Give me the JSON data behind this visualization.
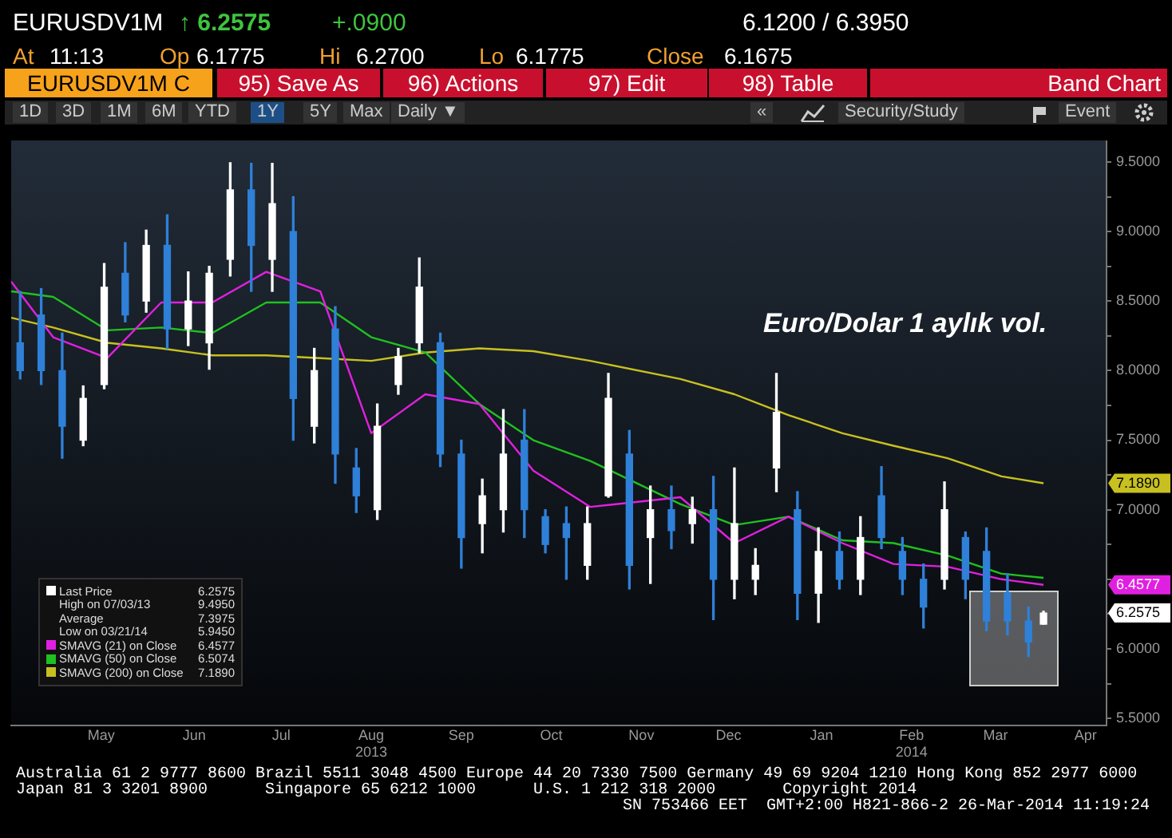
{
  "chart_data": {
    "type": "candlestick",
    "title": "Euro/Dolar 1 aylık vol.",
    "xlim": [
      "2013-04-16",
      "2014-04-16"
    ],
    "xticks": [
      {
        "value": "2013-05-16",
        "label": "May"
      },
      {
        "value": "2013-06-16",
        "label": "Jun"
      },
      {
        "value": "2013-07-15",
        "label": "Jul"
      },
      {
        "value": "2013-08-14",
        "label": "Aug\n2013"
      },
      {
        "value": "2013-09-13",
        "label": "Sep"
      },
      {
        "value": "2013-10-13",
        "label": "Oct"
      },
      {
        "value": "2013-11-12",
        "label": "Nov"
      },
      {
        "value": "2013-12-11",
        "label": "Dec"
      },
      {
        "value": "2014-01-11",
        "label": "Jan"
      },
      {
        "value": "2014-02-10",
        "label": "Feb\n2014"
      },
      {
        "value": "2014-03-10",
        "label": "Mar"
      },
      {
        "value": "2014-04-09",
        "label": "Apr"
      }
    ],
    "ylim": [
      5.45,
      9.65
    ],
    "yticks": [
      {
        "value": 5.5,
        "label": "5.5000"
      },
      {
        "value": 5.75,
        "label": null
      },
      {
        "value": 6,
        "label": "6.0000"
      },
      {
        "value": 6.25,
        "label": null
      },
      {
        "value": 6.5,
        "label": null
      },
      {
        "value": 6.75,
        "label": null
      },
      {
        "value": 7,
        "label": "7.0000"
      },
      {
        "value": 7.25,
        "label": null
      },
      {
        "value": 7.5,
        "label": "7.5000"
      },
      {
        "value": 7.75,
        "label": null
      },
      {
        "value": 8,
        "label": "8.0000"
      },
      {
        "value": 8.25,
        "label": null
      },
      {
        "value": 8.5,
        "label": "8.5000"
      },
      {
        "value": 8.75,
        "label": null
      },
      {
        "value": 9,
        "label": "9.0000"
      },
      {
        "value": 9.25,
        "label": null
      },
      {
        "value": 9.5,
        "label": "9.5000"
      }
    ],
    "legend": "bottom left",
    "series": [
      {
        "name": "Last Price",
        "x": [
          "2013-04-19",
          "2013-04-26",
          "2013-05-03",
          "2013-05-10",
          "2013-05-17",
          "2013-05-24",
          "2013-05-31",
          "2013-06-07",
          "2013-06-14",
          "2013-06-21",
          "2013-06-28",
          "2013-07-05",
          "2013-07-12",
          "2013-07-19",
          "2013-07-26",
          "2013-08-02",
          "2013-08-09",
          "2013-08-16",
          "2013-08-23",
          "2013-08-30",
          "2013-09-06",
          "2013-09-13",
          "2013-09-20",
          "2013-09-27",
          "2013-10-04",
          "2013-10-11",
          "2013-10-18",
          "2013-10-25",
          "2013-11-01",
          "2013-11-08",
          "2013-11-15",
          "2013-11-22",
          "2013-11-29",
          "2013-12-06",
          "2013-12-13",
          "2013-12-20",
          "2013-12-27",
          "2014-01-03",
          "2014-01-10",
          "2014-01-17",
          "2014-01-24",
          "2014-01-31",
          "2014-02-07",
          "2014-02-14",
          "2014-02-21",
          "2014-02-28",
          "2014-03-07",
          "2014-03-14",
          "2014-03-21",
          "2014-03-26"
        ],
        "ohlc": [
          [
            8.2,
            8.57,
            7.94,
            8.0
          ],
          [
            8.4,
            8.59,
            7.9,
            8.0
          ],
          [
            8.0,
            8.27,
            7.37,
            7.6
          ],
          [
            7.5,
            7.89,
            7.46,
            7.8
          ],
          [
            7.9,
            8.77,
            7.87,
            8.6
          ],
          [
            8.7,
            8.92,
            8.35,
            8.4
          ],
          [
            8.5,
            9.01,
            8.42,
            8.9
          ],
          [
            8.9,
            9.12,
            8.16,
            8.3
          ],
          [
            8.3,
            8.71,
            8.18,
            8.5
          ],
          [
            8.2,
            8.75,
            8.01,
            8.7
          ],
          [
            8.8,
            9.495,
            8.68,
            9.3
          ],
          [
            9.3,
            9.49,
            8.57,
            8.9
          ],
          [
            8.8,
            9.49,
            8.57,
            9.2
          ],
          [
            9.0,
            9.25,
            7.5,
            7.8
          ],
          [
            7.6,
            8.16,
            7.48,
            8.0
          ],
          [
            8.3,
            8.46,
            7.19,
            7.4
          ],
          [
            7.3,
            7.44,
            6.98,
            7.1
          ],
          [
            7.0,
            7.76,
            6.93,
            7.6
          ],
          [
            7.9,
            8.16,
            7.83,
            8.1
          ],
          [
            8.2,
            8.81,
            8.13,
            8.6
          ],
          [
            8.2,
            8.27,
            7.31,
            7.4
          ],
          [
            7.4,
            7.5,
            6.58,
            6.8
          ],
          [
            6.9,
            7.22,
            6.69,
            7.1
          ],
          [
            7.0,
            7.72,
            6.84,
            7.4
          ],
          [
            7.5,
            7.72,
            6.8,
            7.0
          ],
          [
            6.95,
            7.0,
            6.69,
            6.75
          ],
          [
            6.9,
            7.02,
            6.5,
            6.8
          ],
          [
            6.6,
            7.02,
            6.5,
            6.9
          ],
          [
            7.1,
            7.98,
            7.09,
            7.8
          ],
          [
            7.4,
            7.57,
            6.43,
            6.6
          ],
          [
            6.8,
            7.17,
            6.47,
            7.0
          ],
          [
            7.0,
            7.17,
            6.72,
            6.85
          ],
          [
            6.9,
            7.09,
            6.76,
            7.0
          ],
          [
            7.0,
            7.24,
            6.21,
            6.5
          ],
          [
            6.5,
            7.3,
            6.36,
            6.9
          ],
          [
            6.5,
            6.72,
            6.39,
            6.6
          ],
          [
            7.3,
            7.98,
            7.13,
            7.7
          ],
          [
            7.0,
            7.13,
            6.21,
            6.4
          ],
          [
            6.4,
            6.87,
            6.19,
            6.7
          ],
          [
            6.7,
            6.84,
            6.43,
            6.5
          ],
          [
            6.5,
            6.95,
            6.39,
            6.8
          ],
          [
            7.1,
            7.31,
            6.72,
            6.8
          ],
          [
            6.7,
            6.8,
            6.39,
            6.5
          ],
          [
            6.5,
            6.61,
            6.15,
            6.3
          ],
          [
            6.5,
            7.2,
            6.43,
            7.0
          ],
          [
            6.8,
            6.84,
            6.36,
            6.5
          ],
          [
            6.7,
            6.87,
            6.13,
            6.2
          ],
          [
            6.4,
            6.54,
            6.1,
            6.2
          ],
          [
            6.2,
            6.3,
            5.945,
            6.05
          ],
          [
            6.1775,
            6.27,
            6.1775,
            6.2575
          ]
        ],
        "colors": [
          "#2f80d8",
          "#2f80d8",
          "#2f80d8",
          "#ffffff",
          "#ffffff",
          "#2f80d8",
          "#ffffff",
          "#2f80d8",
          "#ffffff",
          "#ffffff",
          "#ffffff",
          "#2f80d8",
          "#ffffff",
          "#2f80d8",
          "#ffffff",
          "#2f80d8",
          "#2f80d8",
          "#ffffff",
          "#ffffff",
          "#ffffff",
          "#2f80d8",
          "#2f80d8",
          "#ffffff",
          "#ffffff",
          "#2f80d8",
          "#2f80d8",
          "#2f80d8",
          "#ffffff",
          "#ffffff",
          "#2f80d8",
          "#ffffff",
          "#2f80d8",
          "#ffffff",
          "#2f80d8",
          "#ffffff",
          "#ffffff",
          "#ffffff",
          "#2f80d8",
          "#ffffff",
          "#2f80d8",
          "#ffffff",
          "#2f80d8",
          "#2f80d8",
          "#2f80d8",
          "#ffffff",
          "#2f80d8",
          "#2f80d8",
          "#2f80d8",
          "#2f80d8",
          "#ffffff"
        ]
      },
      {
        "name": "SMAVG (21) on Close",
        "type": "line",
        "color": "#e020e0",
        "x": [
          "2013-04-16",
          "2013-04-30",
          "2013-05-18",
          "2013-06-05",
          "2013-06-22",
          "2013-07-10",
          "2013-07-28",
          "2013-08-14",
          "2013-09-01",
          "2013-09-19",
          "2013-10-07",
          "2013-10-26",
          "2013-11-25",
          "2013-12-13",
          "2013-12-31",
          "2014-01-18",
          "2014-02-04",
          "2014-02-22",
          "2014-03-12",
          "2014-03-26"
        ],
        "values": [
          8.64,
          8.24,
          8.09,
          8.49,
          8.49,
          8.71,
          8.57,
          7.55,
          7.83,
          7.76,
          7.28,
          7.02,
          7.09,
          6.76,
          6.95,
          6.76,
          6.61,
          6.59,
          6.5,
          6.46
        ]
      },
      {
        "name": "SMAVG (50) on Close",
        "type": "line",
        "color": "#20c020",
        "x": [
          "2013-04-16",
          "2013-04-30",
          "2013-05-18",
          "2013-06-05",
          "2013-06-22",
          "2013-07-10",
          "2013-07-28",
          "2013-08-14",
          "2013-09-01",
          "2013-09-19",
          "2013-10-07",
          "2013-10-26",
          "2013-11-25",
          "2013-12-13",
          "2013-12-31",
          "2014-01-18",
          "2014-02-04",
          "2014-02-22",
          "2014-03-12",
          "2014-03-26"
        ],
        "values": [
          8.57,
          8.53,
          8.29,
          8.31,
          8.27,
          8.49,
          8.49,
          8.24,
          8.13,
          7.76,
          7.5,
          7.35,
          7.04,
          6.89,
          6.95,
          6.78,
          6.76,
          6.67,
          6.54,
          6.51
        ]
      },
      {
        "name": "SMAVG (200) on Close",
        "type": "line",
        "color": "#c8c020",
        "x": [
          "2013-04-16",
          "2013-04-30",
          "2013-05-18",
          "2013-06-05",
          "2013-06-22",
          "2013-07-10",
          "2013-07-28",
          "2013-08-14",
          "2013-09-01",
          "2013-09-19",
          "2013-10-07",
          "2013-10-26",
          "2013-11-25",
          "2013-12-13",
          "2013-12-31",
          "2014-01-18",
          "2014-02-04",
          "2014-02-22",
          "2014-03-12",
          "2014-03-26"
        ],
        "values": [
          8.38,
          8.31,
          8.2,
          8.16,
          8.11,
          8.11,
          8.09,
          8.07,
          8.13,
          8.16,
          8.14,
          8.07,
          7.94,
          7.83,
          7.68,
          7.55,
          7.46,
          7.37,
          7.24,
          7.19
        ]
      }
    ],
    "annotations": [
      "EURUSDV1M",
      "↑ 6.2575",
      "+.0900",
      "6.1200 / 6.3950",
      "At 11:13",
      "Op 6.1775",
      "Hi 6.2700",
      "Lo 6.1775",
      "Close 6.1675",
      "EURUSDV1M C",
      "95) Save As",
      "96) Actions",
      "97) Edit",
      "98) Table",
      "Band Chart",
      "1D",
      "3D",
      "1M",
      "6M",
      "YTD",
      "1Y",
      "5Y",
      "Max",
      "Daily ▼",
      "«",
      "Security/Study",
      "Event",
      "6.2575",
      "High on 07/03/13",
      "9.4950",
      "Average",
      "7.3975",
      "Low on 03/21/14",
      "5.9450",
      "6.4577",
      "6.5074",
      "7.1890",
      "Australia 61 2 9777 8600 Brazil 5511 3048 4500 Europe 44 20 7330 7500 Germany 49 69 9204 1210 Hong Kong 852 2977 6000",
      "Japan 81 3 3201 8900      Singapore 65 6212 1000      U.S. 1 212 318 2000       Copyright 2014",
      "SN 753466 EET  GMT+2:00 H821-866-2 26-Mar-2014 11:19:24",
      "7.1890",
      "6.4577",
      "6.2575"
    ]
  }
}
